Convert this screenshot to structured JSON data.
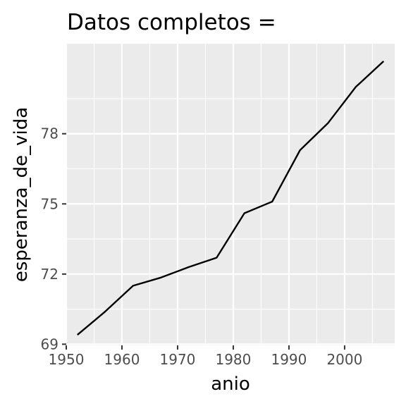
{
  "chart_data": {
    "type": "line",
    "title": "Datos completos =",
    "xlabel": "anio",
    "ylabel": "esperanza_de_vida",
    "x": [
      1952,
      1957,
      1962,
      1967,
      1972,
      1977,
      1982,
      1987,
      1992,
      1997,
      2002,
      2007
    ],
    "series": [
      {
        "values": [
          69.4,
          70.4,
          71.5,
          71.85,
          72.3,
          72.7,
          74.6,
          75.1,
          77.3,
          78.45,
          80.0,
          81.1
        ]
      }
    ],
    "xlim": [
      1950,
      2009
    ],
    "ylim": [
      68.95,
      81.85
    ],
    "x_ticks": [
      1950,
      1960,
      1970,
      1980,
      1990,
      2000
    ],
    "x_tick_labels": [
      "1950",
      "1960",
      "1970",
      "1980",
      "1990",
      "2000"
    ],
    "y_ticks": [
      69,
      72,
      75,
      78
    ],
    "y_tick_labels": [
      "69",
      "72",
      "75",
      "78"
    ],
    "grid": true,
    "colors": {
      "panel": "#EBEBEB",
      "grid": "#FFFFFF",
      "line": "#000000",
      "tick_text": "#4D4D4D"
    }
  }
}
